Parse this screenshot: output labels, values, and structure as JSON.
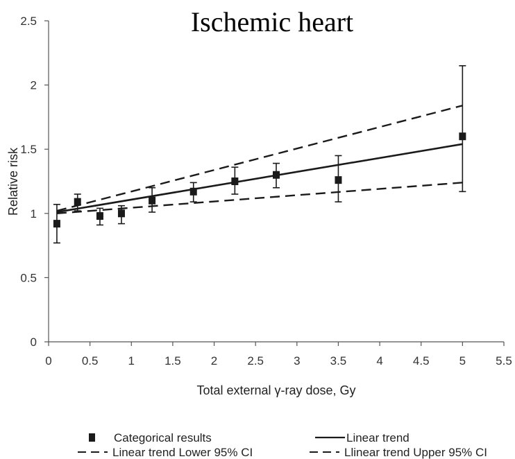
{
  "chart_data": {
    "type": "scatter",
    "title": "Ischemic heart",
    "xlabel": "Total external γ-ray dose, Gy",
    "ylabel": "Relative risk",
    "xlim": [
      0,
      5.5
    ],
    "ylim": [
      0,
      2.5
    ],
    "xticks": [
      "0",
      "0.5",
      "1",
      "1.5",
      "2",
      "2.5",
      "3",
      "3.5",
      "4",
      "4.5",
      "5",
      "5.5"
    ],
    "yticks": [
      "0",
      "0.5",
      "1",
      "1.5",
      "2",
      "2.5"
    ],
    "grid": false,
    "series": [
      {
        "name": "Categorical results",
        "kind": "points_with_error_bars",
        "points": [
          {
            "x": 0.1,
            "y": 0.92,
            "lo": 0.77,
            "hi": 1.07
          },
          {
            "x": 0.35,
            "y": 1.09,
            "lo": 1.02,
            "hi": 1.15
          },
          {
            "x": 0.62,
            "y": 0.98,
            "lo": 0.91,
            "hi": 1.04
          },
          {
            "x": 0.88,
            "y": 1.0,
            "lo": 0.92,
            "hi": 1.06
          },
          {
            "x": 1.25,
            "y": 1.1,
            "lo": 1.01,
            "hi": 1.2
          },
          {
            "x": 1.75,
            "y": 1.17,
            "lo": 1.09,
            "hi": 1.24
          },
          {
            "x": 2.25,
            "y": 1.25,
            "lo": 1.15,
            "hi": 1.36
          },
          {
            "x": 2.75,
            "y": 1.3,
            "lo": 1.2,
            "hi": 1.39
          },
          {
            "x": 3.5,
            "y": 1.26,
            "lo": 1.09,
            "hi": 1.45
          },
          {
            "x": 5.0,
            "y": 1.6,
            "lo": 1.17,
            "hi": 2.15
          }
        ]
      },
      {
        "name": "Linear trend",
        "kind": "line",
        "style": "solid",
        "x": [
          0.1,
          5.0
        ],
        "y": [
          1.01,
          1.54
        ]
      },
      {
        "name": "Linear trend Lower 95% CI",
        "kind": "line",
        "style": "dashed",
        "x": [
          0.1,
          5.0
        ],
        "y": [
          1.0,
          1.24
        ]
      },
      {
        "name": "Llinear trend Upper 95% CI",
        "kind": "line",
        "style": "dashed",
        "x": [
          0.1,
          5.0
        ],
        "y": [
          1.02,
          1.84
        ]
      }
    ],
    "legend": {
      "placement": "bottom",
      "items": [
        {
          "label": "Categorical results",
          "symbol": "square"
        },
        {
          "label": "Linear trend",
          "symbol": "solid-line"
        },
        {
          "label": "Linear trend Lower 95% CI",
          "symbol": "dashed-line"
        },
        {
          "label": "Llinear trend Upper 95% CI",
          "symbol": "dashed-line"
        }
      ]
    },
    "colors": {
      "marks": "#1a1a1a",
      "axis": "#555555"
    }
  }
}
